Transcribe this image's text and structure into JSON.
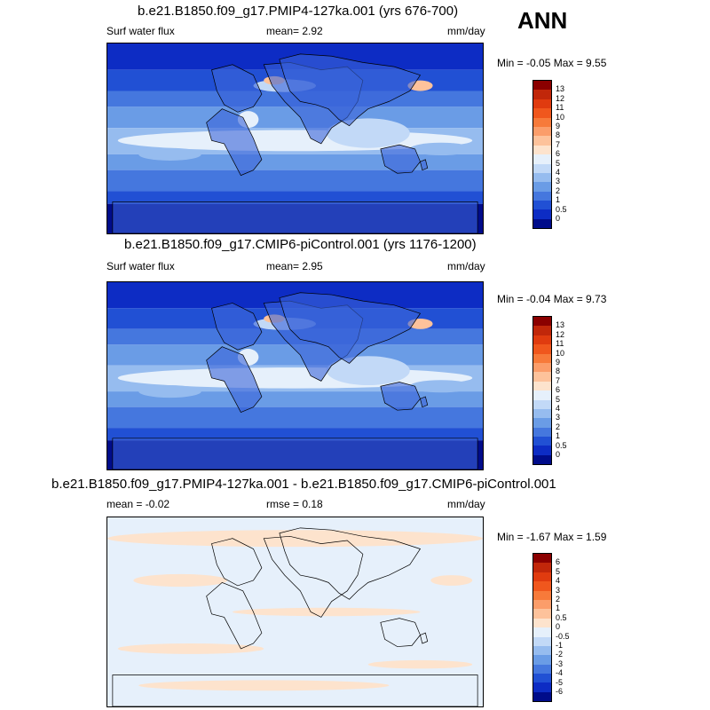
{
  "season": "ANN",
  "panels": [
    {
      "title": "b.e21.B1850.f09_g17.PMIP4-127ka.001 (yrs 676-700)",
      "left_label": "Surf water flux",
      "center_label": "mean=   2.92",
      "units": "mm/day",
      "minmax": "Min =  -0.05 Max =   9.55",
      "cbar_labels": [
        "13",
        "12",
        "11",
        "10",
        "9",
        "8",
        "7",
        "6",
        "5",
        "4",
        "3",
        "2",
        "1",
        "0.5",
        "0"
      ],
      "cbar_colors": [
        "#8b0000",
        "#c1270a",
        "#e03b0f",
        "#f0571d",
        "#f77a3a",
        "#fb9d6a",
        "#fdc29b",
        "#fde3cd",
        "#e6f0fb",
        "#c2d9f7",
        "#96bcef",
        "#6a9ce6",
        "#4577de",
        "#2150d4",
        "#0d2cc4",
        "#000c8a"
      ],
      "field": "precip"
    },
    {
      "title": "b.e21.B1850.f09_g17.CMIP6-piControl.001 (yrs 1176-1200)",
      "left_label": "Surf water flux",
      "center_label": "mean=   2.95",
      "units": "mm/day",
      "minmax": "Min =  -0.04 Max =   9.73",
      "cbar_labels": [
        "13",
        "12",
        "11",
        "10",
        "9",
        "8",
        "7",
        "6",
        "5",
        "4",
        "3",
        "2",
        "1",
        "0.5",
        "0"
      ],
      "cbar_colors": [
        "#8b0000",
        "#c1270a",
        "#e03b0f",
        "#f0571d",
        "#f77a3a",
        "#fb9d6a",
        "#fdc29b",
        "#fde3cd",
        "#e6f0fb",
        "#c2d9f7",
        "#96bcef",
        "#6a9ce6",
        "#4577de",
        "#2150d4",
        "#0d2cc4",
        "#000c8a"
      ],
      "field": "precip"
    },
    {
      "title": "b.e21.B1850.f09_g17.PMIP4-127ka.001 - b.e21.B1850.f09_g17.CMIP6-piControl.001",
      "left_label": "mean =  -0.02",
      "center_label": "rmse =   0.18",
      "units": "mm/day",
      "minmax": "Min =  -1.67 Max =   1.59",
      "cbar_labels": [
        "6",
        "5",
        "4",
        "3",
        "2",
        "1",
        "0.5",
        "0",
        "-0.5",
        "-1",
        "-2",
        "-3",
        "-4",
        "-5",
        "-6"
      ],
      "cbar_colors": [
        "#8b0000",
        "#c1270a",
        "#e03b0f",
        "#f0571d",
        "#f77a3a",
        "#fb9d6a",
        "#fdc29b",
        "#fde3cd",
        "#e6f0fb",
        "#c2d9f7",
        "#96bcef",
        "#6a9ce6",
        "#4577de",
        "#2150d4",
        "#0d2cc4",
        "#000c8a"
      ],
      "field": "diff"
    }
  ]
}
